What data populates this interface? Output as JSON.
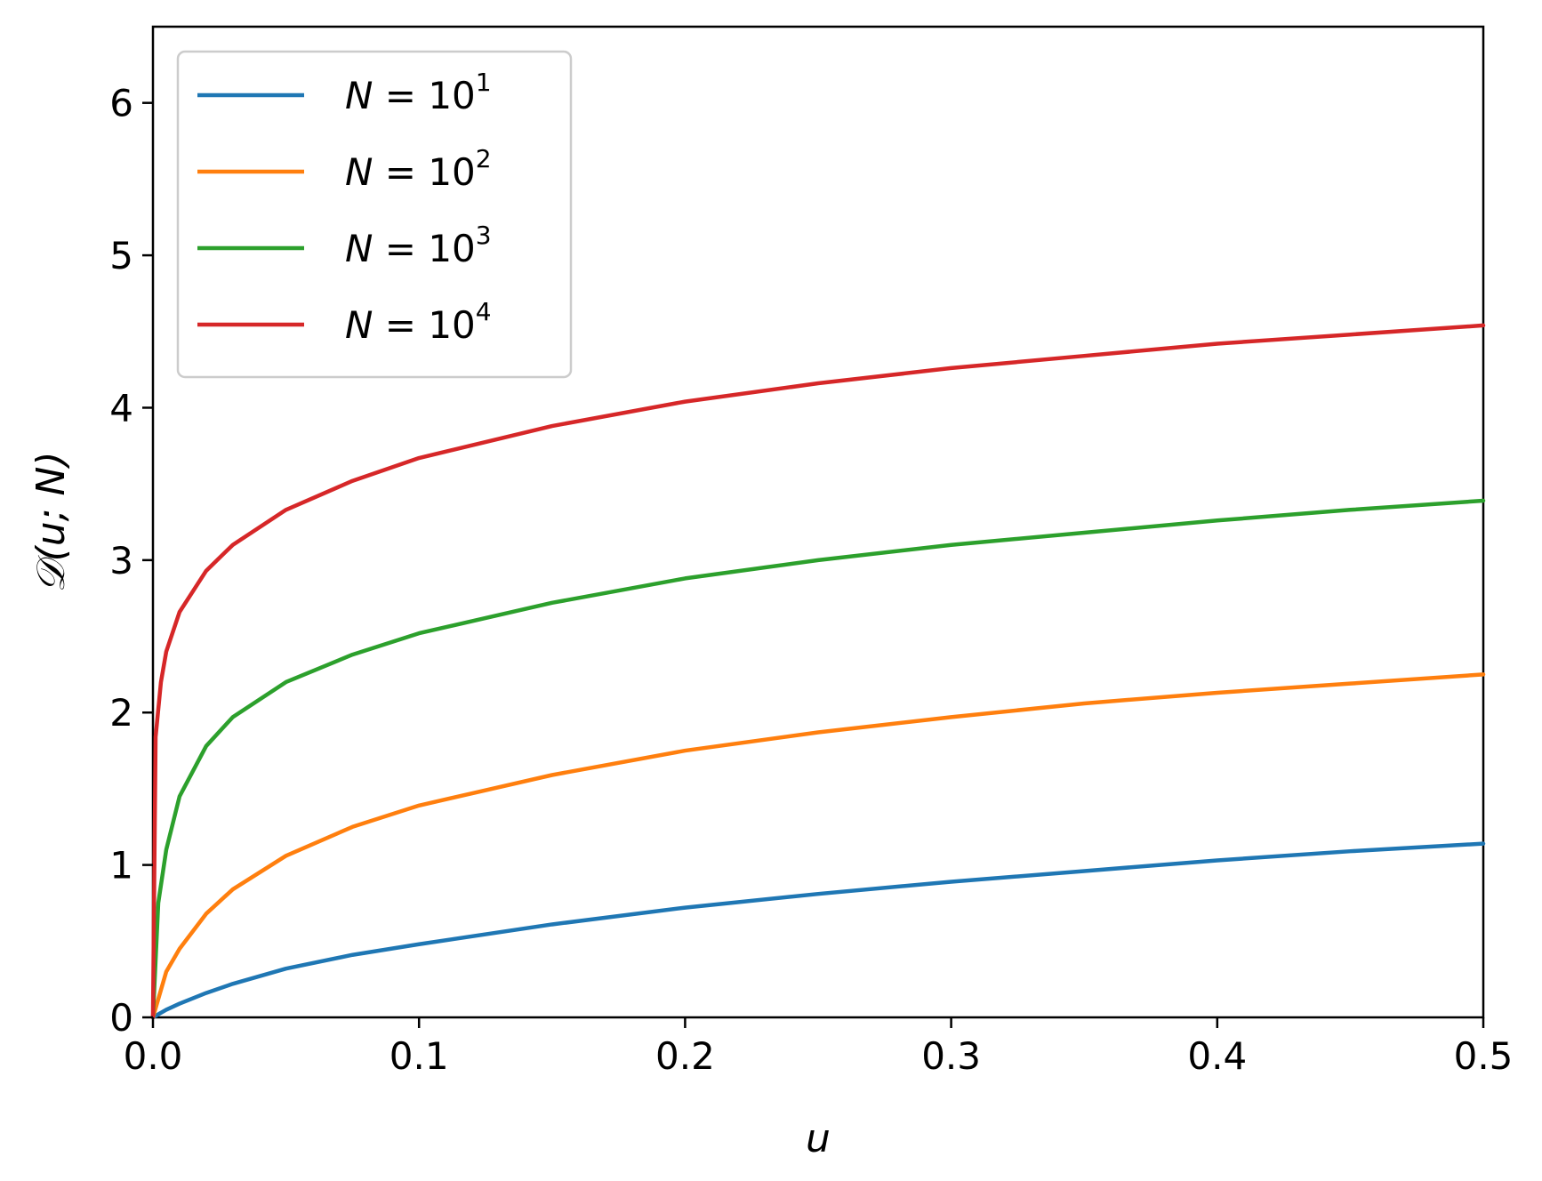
{
  "chart_data": {
    "type": "line",
    "xlabel": "u",
    "ylabel": "𝒟(u; N)",
    "xlim": [
      0,
      0.5
    ],
    "ylim": [
      0,
      6.5
    ],
    "xticks": [
      0.0,
      0.1,
      0.2,
      0.3,
      0.4,
      0.5
    ],
    "xtick_labels": [
      "0.0",
      "0.1",
      "0.2",
      "0.3",
      "0.4",
      "0.5"
    ],
    "yticks": [
      0,
      1,
      2,
      3,
      4,
      5,
      6
    ],
    "ytick_labels": [
      "0",
      "1",
      "2",
      "3",
      "4",
      "5",
      "6"
    ],
    "grid": false,
    "legend_position": "top-left",
    "series": [
      {
        "name": "N = 10^1",
        "legend_var": "N",
        "legend_eq": " = 10",
        "legend_exp": "1",
        "color": "#1f77b4",
        "x": [
          0,
          0.005,
          0.01,
          0.02,
          0.03,
          0.05,
          0.075,
          0.1,
          0.15,
          0.2,
          0.25,
          0.3,
          0.35,
          0.4,
          0.45,
          0.5
        ],
        "y": [
          0,
          0.05,
          0.09,
          0.16,
          0.22,
          0.32,
          0.41,
          0.48,
          0.61,
          0.72,
          0.81,
          0.89,
          0.96,
          1.03,
          1.09,
          1.14
        ]
      },
      {
        "name": "N = 10^2",
        "legend_var": "N",
        "legend_eq": " = 10",
        "legend_exp": "2",
        "color": "#ff7f0e",
        "x": [
          0,
          0.005,
          0.01,
          0.02,
          0.03,
          0.05,
          0.075,
          0.1,
          0.15,
          0.2,
          0.25,
          0.3,
          0.35,
          0.4,
          0.45,
          0.5
        ],
        "y": [
          0,
          0.3,
          0.45,
          0.68,
          0.84,
          1.06,
          1.25,
          1.39,
          1.59,
          1.75,
          1.87,
          1.97,
          2.06,
          2.13,
          2.19,
          2.25
        ]
      },
      {
        "name": "N = 10^3",
        "legend_var": "N",
        "legend_eq": " = 10",
        "legend_exp": "3",
        "color": "#2ca02c",
        "x": [
          0,
          0.002,
          0.005,
          0.01,
          0.02,
          0.03,
          0.05,
          0.075,
          0.1,
          0.15,
          0.2,
          0.25,
          0.3,
          0.35,
          0.4,
          0.45,
          0.5
        ],
        "y": [
          0,
          0.75,
          1.1,
          1.45,
          1.78,
          1.97,
          2.2,
          2.38,
          2.52,
          2.72,
          2.88,
          3.0,
          3.1,
          3.18,
          3.26,
          3.33,
          3.39
        ]
      },
      {
        "name": "N = 10^4",
        "legend_var": "N",
        "legend_eq": " = 10",
        "legend_exp": "4",
        "color": "#d62728",
        "x": [
          0,
          0.001,
          0.003,
          0.005,
          0.01,
          0.02,
          0.03,
          0.05,
          0.075,
          0.1,
          0.15,
          0.2,
          0.25,
          0.3,
          0.35,
          0.4,
          0.45,
          0.5
        ],
        "y": [
          0,
          1.84,
          2.2,
          2.4,
          2.66,
          2.93,
          3.1,
          3.33,
          3.52,
          3.67,
          3.88,
          4.04,
          4.16,
          4.26,
          4.34,
          4.42,
          4.48,
          4.54
        ]
      }
    ]
  }
}
